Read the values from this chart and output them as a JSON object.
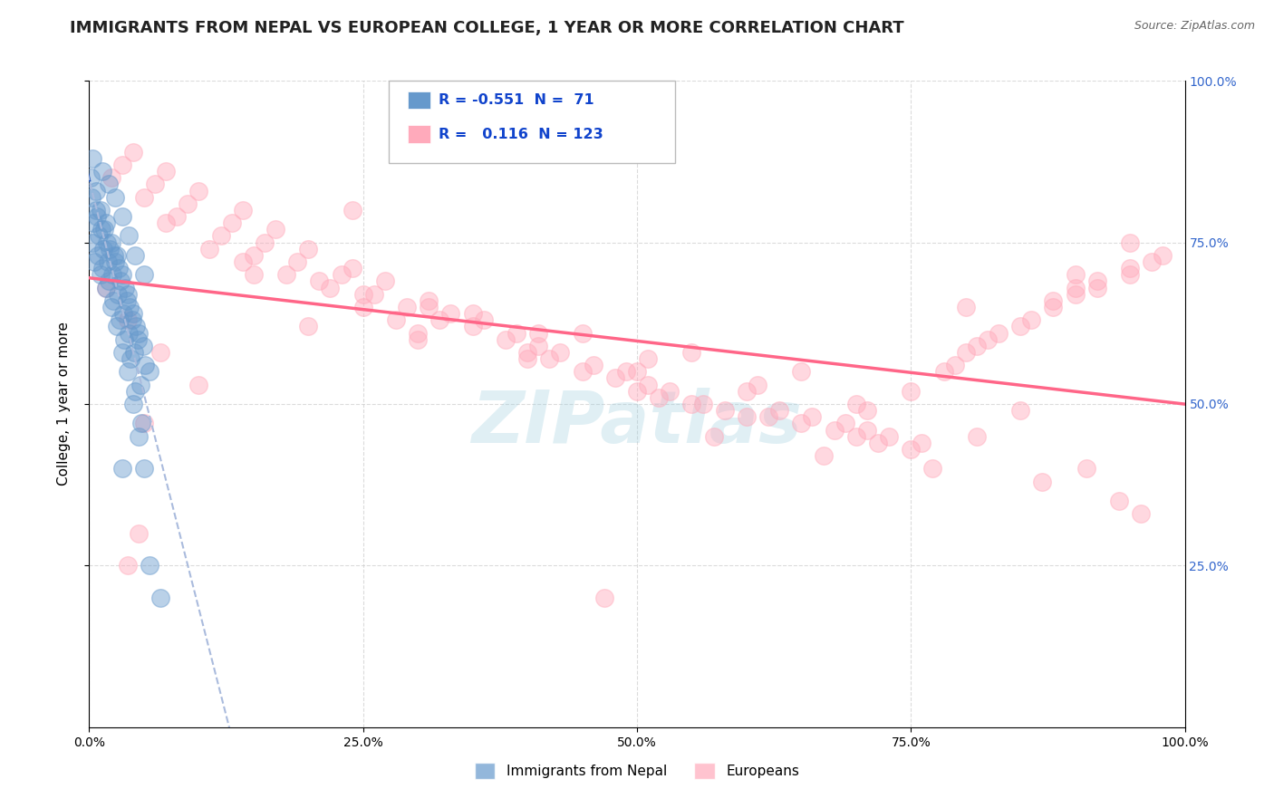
{
  "title": "IMMIGRANTS FROM NEPAL VS EUROPEAN COLLEGE, 1 YEAR OR MORE CORRELATION CHART",
  "source": "Source: ZipAtlas.com",
  "ylabel": "College, 1 year or more",
  "xlim": [
    0.0,
    100.0
  ],
  "ylim": [
    0.0,
    100.0
  ],
  "legend_entries": [
    {
      "label": "Immigrants from Nepal",
      "color": "#6699cc",
      "R": "-0.551",
      "N": "71"
    },
    {
      "label": "Europeans",
      "color": "#ffaabb",
      "R": "0.116",
      "N": "123"
    }
  ],
  "nepal_x": [
    0.5,
    1.0,
    1.5,
    2.0,
    2.5,
    3.0,
    3.5,
    4.0,
    4.5,
    5.0,
    0.3,
    0.8,
    1.2,
    1.8,
    2.2,
    2.8,
    3.2,
    3.8,
    4.2,
    4.8,
    0.4,
    0.9,
    1.3,
    1.7,
    2.1,
    2.6,
    3.1,
    3.6,
    4.1,
    4.7,
    0.6,
    1.1,
    1.6,
    2.3,
    2.7,
    3.3,
    3.7,
    4.3,
    4.9,
    5.5,
    0.2,
    0.7,
    1.4,
    1.9,
    2.4,
    2.9,
    3.4,
    3.9,
    4.4,
    5.1,
    0.1,
    0.6,
    1.0,
    1.5,
    2.0,
    2.5,
    3.0,
    3.5,
    4.0,
    4.5,
    0.3,
    1.2,
    1.8,
    2.4,
    3.0,
    3.6,
    4.2,
    5.0,
    5.5,
    6.5,
    3.0
  ],
  "nepal_y": [
    72,
    70,
    68,
    65,
    62,
    58,
    55,
    50,
    45,
    40,
    75,
    73,
    71,
    69,
    66,
    63,
    60,
    57,
    52,
    47,
    78,
    76,
    74,
    72,
    70,
    67,
    64,
    61,
    58,
    53,
    80,
    77,
    75,
    73,
    71,
    68,
    65,
    62,
    59,
    55,
    82,
    79,
    77,
    74,
    72,
    69,
    66,
    63,
    60,
    56,
    85,
    83,
    80,
    78,
    75,
    73,
    70,
    67,
    64,
    61,
    88,
    86,
    84,
    82,
    79,
    76,
    73,
    70,
    25,
    20,
    40
  ],
  "europe_x": [
    2.0,
    5.0,
    8.0,
    12.0,
    15.0,
    18.0,
    22.0,
    25.0,
    28.0,
    30.0,
    3.0,
    6.0,
    9.0,
    13.0,
    16.0,
    19.0,
    23.0,
    26.0,
    29.0,
    32.0,
    4.0,
    7.0,
    10.0,
    14.0,
    17.0,
    20.0,
    24.0,
    27.0,
    31.0,
    33.0,
    35.0,
    38.0,
    40.0,
    42.0,
    45.0,
    48.0,
    50.0,
    52.0,
    55.0,
    58.0,
    36.0,
    39.0,
    41.0,
    43.0,
    46.0,
    49.0,
    51.0,
    53.0,
    56.0,
    60.0,
    62.0,
    65.0,
    68.0,
    70.0,
    72.0,
    75.0,
    78.0,
    80.0,
    82.0,
    85.0,
    63.0,
    66.0,
    69.0,
    71.0,
    73.0,
    76.0,
    79.0,
    81.0,
    83.0,
    86.0,
    88.0,
    90.0,
    92.0,
    95.0,
    97.0,
    88.0,
    90.0,
    92.0,
    95.0,
    98.0,
    1.5,
    3.5,
    6.5,
    10.0,
    20.0,
    30.0,
    40.0,
    50.0,
    60.0,
    70.0,
    80.0,
    5.0,
    15.0,
    25.0,
    35.0,
    45.0,
    55.0,
    65.0,
    75.0,
    85.0,
    95.0,
    90.0,
    7.0,
    11.0,
    21.0,
    31.0,
    41.0,
    51.0,
    61.0,
    71.0,
    81.0,
    91.0,
    3.5,
    47.0,
    57.0,
    67.0,
    77.0,
    87.0,
    94.0,
    96.0,
    4.5,
    14.0,
    24.0
  ],
  "europe_y": [
    85,
    82,
    79,
    76,
    73,
    70,
    68,
    65,
    63,
    61,
    87,
    84,
    81,
    78,
    75,
    72,
    70,
    67,
    65,
    63,
    89,
    86,
    83,
    80,
    77,
    74,
    71,
    69,
    66,
    64,
    62,
    60,
    58,
    57,
    55,
    54,
    52,
    51,
    50,
    49,
    63,
    61,
    59,
    58,
    56,
    55,
    53,
    52,
    50,
    48,
    48,
    47,
    46,
    45,
    44,
    43,
    55,
    58,
    60,
    62,
    49,
    48,
    47,
    46,
    45,
    44,
    56,
    59,
    61,
    63,
    65,
    67,
    68,
    70,
    72,
    66,
    68,
    69,
    71,
    73,
    68,
    63,
    58,
    53,
    62,
    60,
    57,
    55,
    52,
    50,
    65,
    47,
    70,
    67,
    64,
    61,
    58,
    55,
    52,
    49,
    75,
    70,
    78,
    74,
    69,
    65,
    61,
    57,
    53,
    49,
    45,
    40,
    25,
    20,
    45,
    42,
    40,
    38,
    35,
    33,
    30,
    72,
    80
  ],
  "nepal_color": "#6699cc",
  "europe_color": "#ffaabb",
  "nepal_line_color": "#2255bb",
  "europe_line_color": "#ff6688",
  "nepal_line_dashed_color": "#aabbdd",
  "watermark_text": "ZIPatlas",
  "watermark_color": "#99ccdd",
  "background_color": "#ffffff",
  "grid_color": "#cccccc",
  "title_fontsize": 13,
  "axis_fontsize": 11,
  "tick_fontsize": 10,
  "source_fontsize": 9
}
